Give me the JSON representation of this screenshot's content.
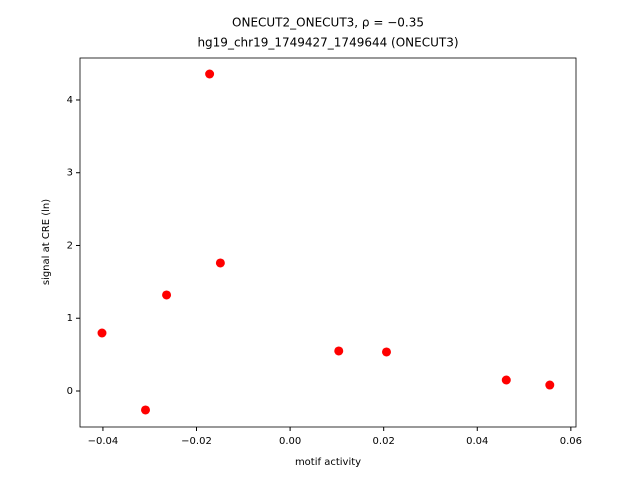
{
  "chart_data": {
    "type": "scatter",
    "title": "ONECUT2_ONECUT3, ρ = −0.35",
    "subtitle": "hg19_chr19_1749427_1749644 (ONECUT3)",
    "x_label": "motif activity",
    "y_label": "signal at CRE (ln)",
    "color": "#ff0000",
    "x": [
      -0.0402,
      -0.0309,
      -0.0264,
      -0.0172,
      -0.0149,
      0.0104,
      0.0206,
      0.0462,
      0.0555
    ],
    "values": [
      0.797,
      -0.261,
      1.32,
      4.357,
      1.76,
      0.55,
      0.536,
      0.151,
      0.082
    ],
    "xlim": [
      -0.0449,
      0.0611
    ],
    "ylim": [
      -0.495,
      4.577
    ],
    "xticks": [
      {
        "value": -0.04,
        "label": "−0.04"
      },
      {
        "value": -0.02,
        "label": "−0.02"
      },
      {
        "value": 0,
        "label": "0.00"
      },
      0.02,
      0.04,
      0.06
    ],
    "yticks": [
      0,
      1,
      2,
      3,
      4
    ],
    "grid": false
  }
}
